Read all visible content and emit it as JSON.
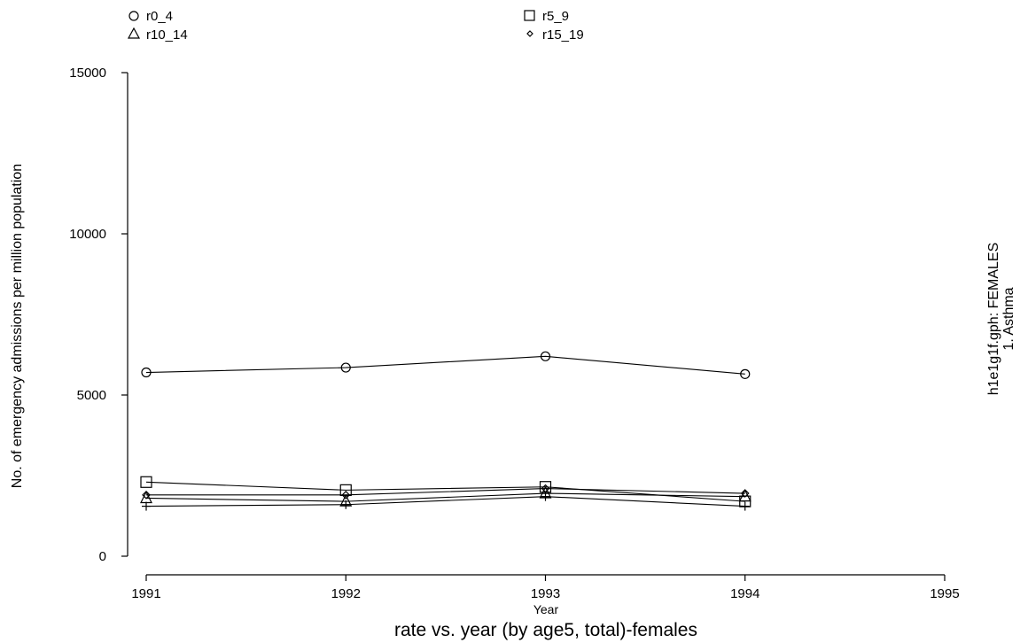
{
  "chart_data": {
    "type": "line",
    "title": "rate vs. year (by age5, total)-females",
    "xlabel": "Year",
    "ylabel": "No. of emergency admissions per million population",
    "side_label_1": "h1e1g1f.gph: FEMALES",
    "side_label_2": "1. Asthma",
    "xlim": [
      1991,
      1995
    ],
    "ylim": [
      0,
      15000
    ],
    "x_ticks": [
      "1991",
      "1992",
      "1993",
      "1994",
      "1995"
    ],
    "y_ticks": [
      "0",
      "5000",
      "10000",
      "15000"
    ],
    "x": [
      1991,
      1992,
      1993,
      1994
    ],
    "legend_position": "top",
    "series": [
      {
        "name": "r0_4",
        "marker": "circle",
        "values": [
          5700,
          5850,
          6200,
          5650
        ]
      },
      {
        "name": "r5_9",
        "marker": "square",
        "values": [
          2300,
          2050,
          2150,
          1700
        ]
      },
      {
        "name": "r10_14",
        "marker": "triangle",
        "values": [
          1800,
          1700,
          1950,
          1850
        ]
      },
      {
        "name": "r15_19",
        "marker": "diamond",
        "values": [
          1900,
          1900,
          2100,
          1950
        ]
      },
      {
        "name": "",
        "marker": "plus",
        "values": [
          1550,
          1600,
          1850,
          1550
        ]
      }
    ]
  }
}
